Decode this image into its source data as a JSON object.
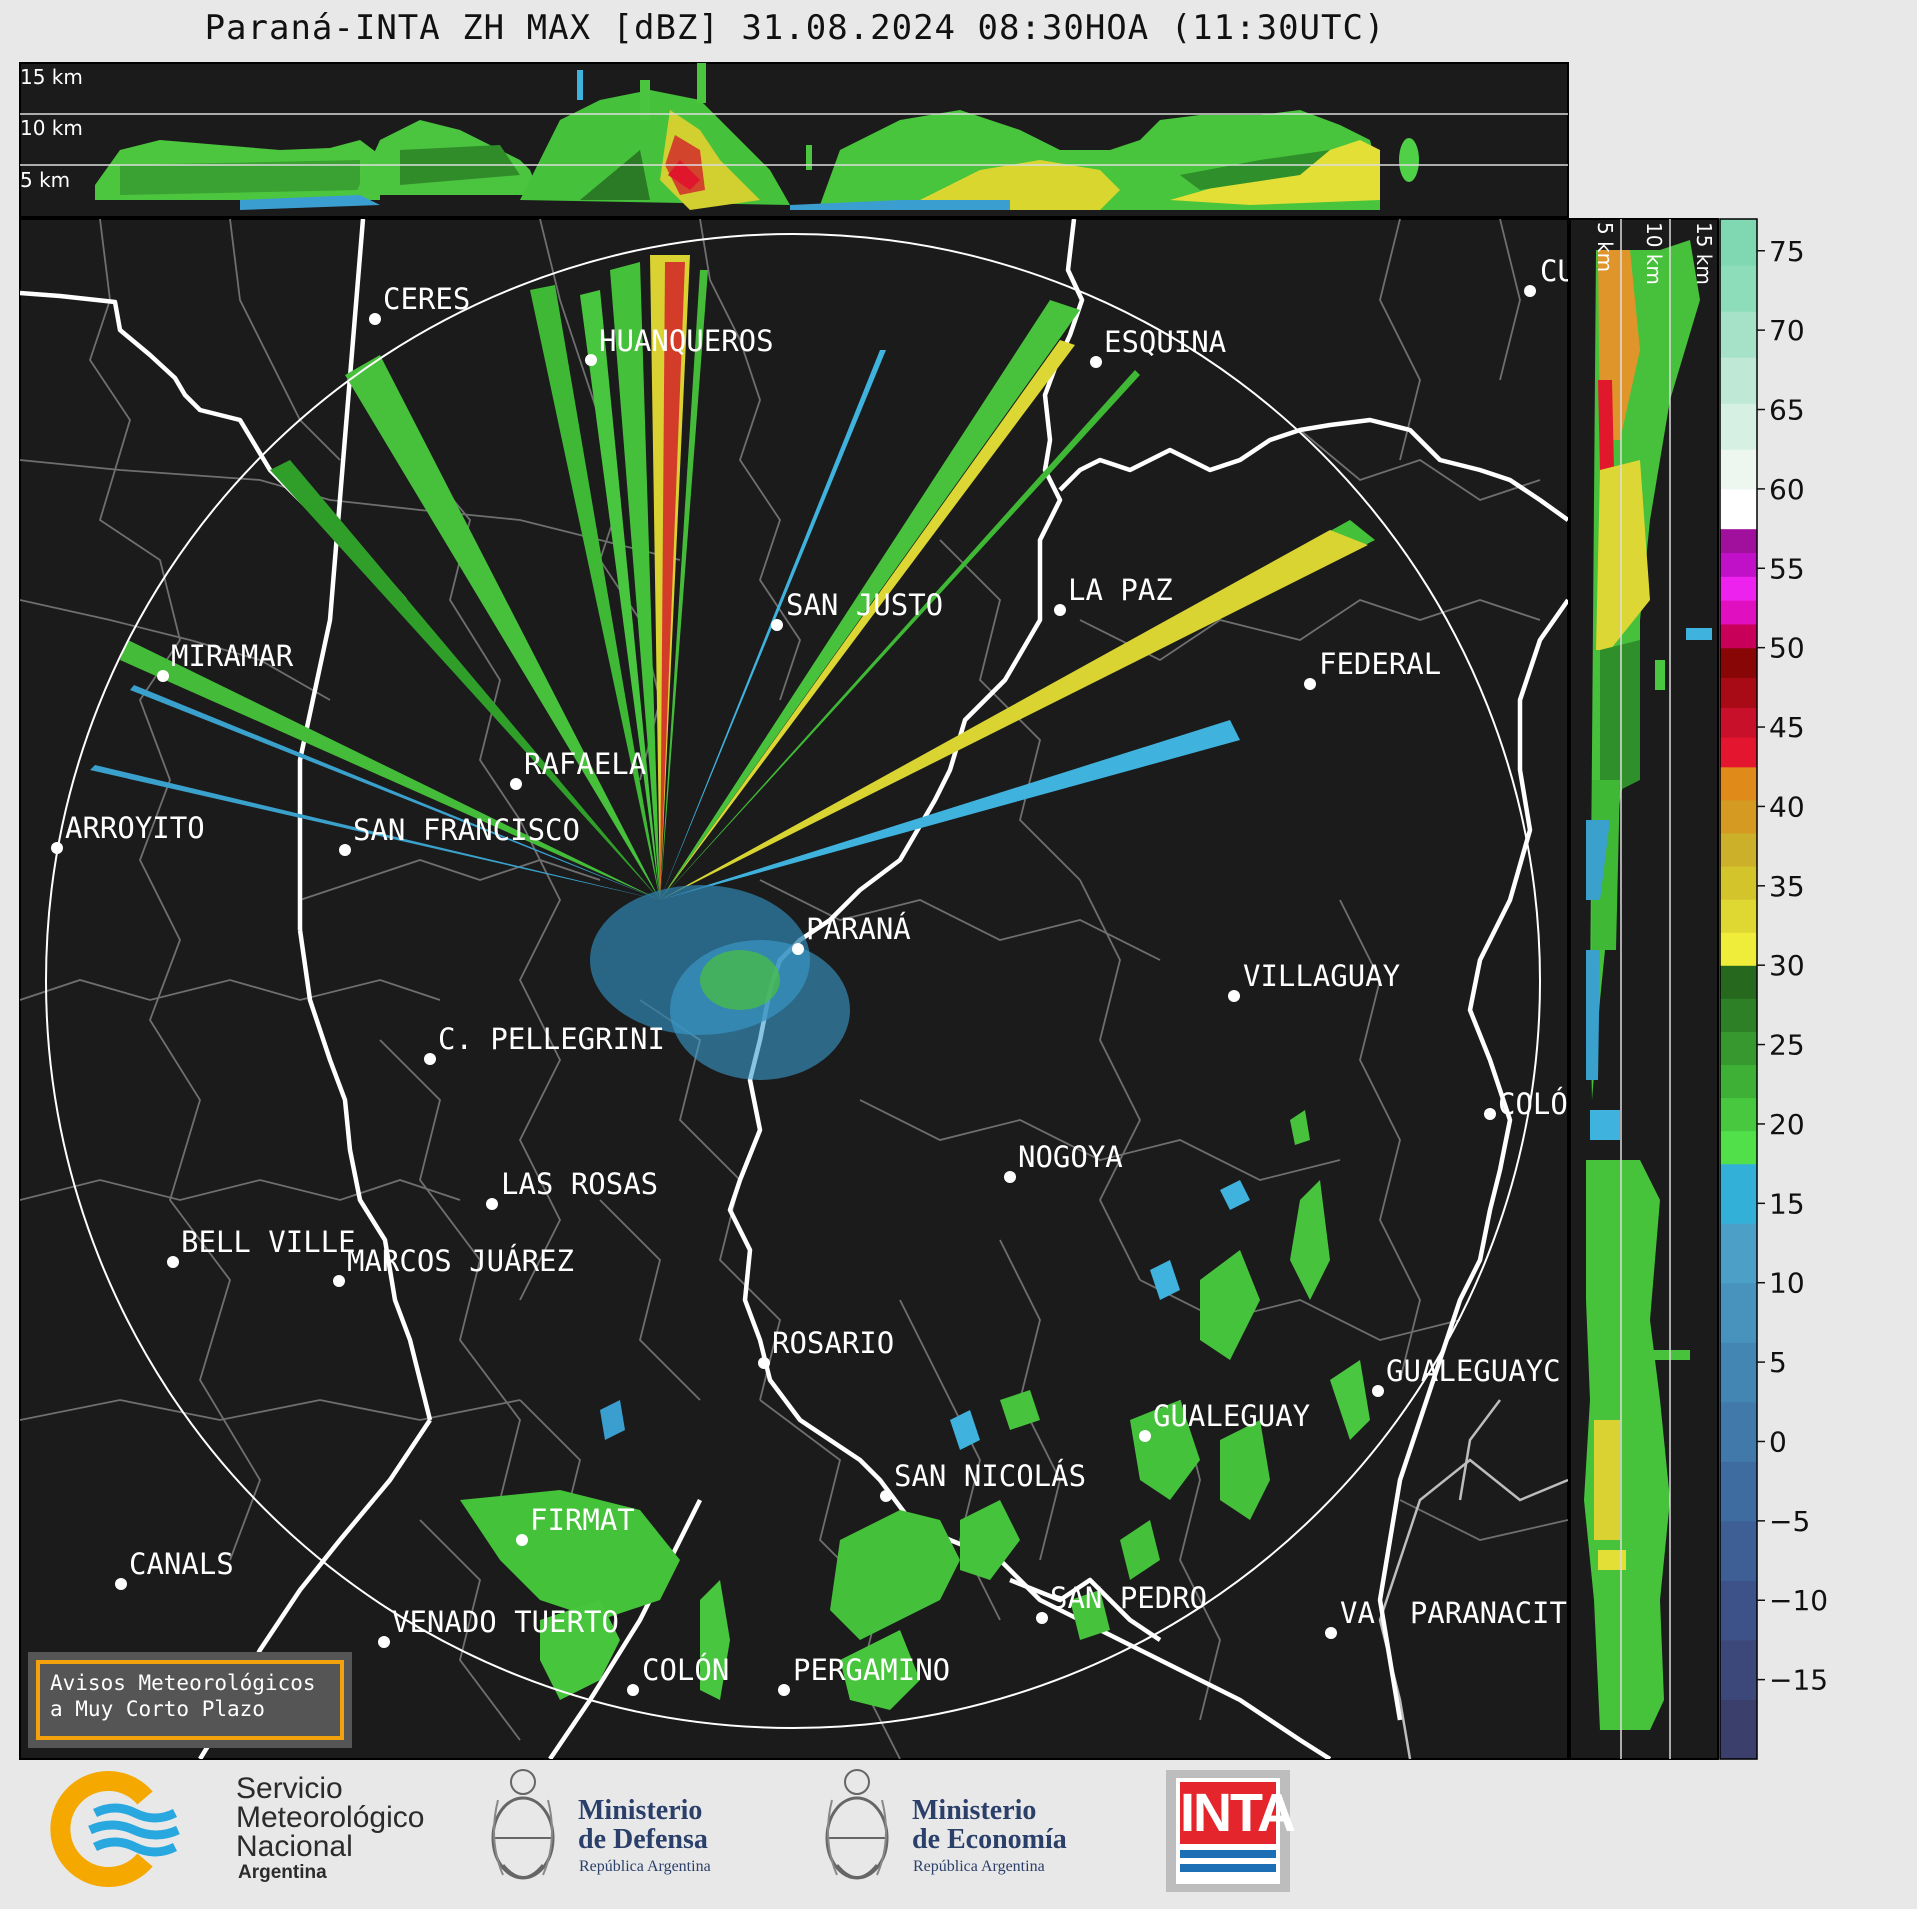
{
  "title": "Paraná-INTA ZH MAX [dBZ] 31.08.2024 08:30HOA (11:30UTC)",
  "height_labels": {
    "h15": "15 km",
    "h10": "10 km",
    "h5": "5 km"
  },
  "side_height_labels": [
    "5 km",
    "10 km",
    "15 km"
  ],
  "cities": [
    {
      "name": "CERES"
    },
    {
      "name": "HUANQUEROS"
    },
    {
      "name": "ESQUINA"
    },
    {
      "name": "CU"
    },
    {
      "name": "SAN JUSTO"
    },
    {
      "name": "LA PAZ"
    },
    {
      "name": "MIRAMAR"
    },
    {
      "name": "FEDERAL"
    },
    {
      "name": "RAFAELA"
    },
    {
      "name": "ARROYITO"
    },
    {
      "name": "SAN FRANCISCO"
    },
    {
      "name": "PARANÁ"
    },
    {
      "name": "VILLAGUAY"
    },
    {
      "name": "C. PELLEGRINI"
    },
    {
      "name": "COLÓ"
    },
    {
      "name": "NOGOYA"
    },
    {
      "name": "LAS ROSAS"
    },
    {
      "name": "BELL VILLE"
    },
    {
      "name": "MARCOS JUÁREZ"
    },
    {
      "name": "ROSARIO"
    },
    {
      "name": "GUALEGUAYC"
    },
    {
      "name": "GUALEGUAY"
    },
    {
      "name": "SAN NICOLÁS"
    },
    {
      "name": "FIRMAT"
    },
    {
      "name": "CANALS"
    },
    {
      "name": "SAN PEDRO"
    },
    {
      "name": "VENADO TUERTO"
    },
    {
      "name": "VA. PARANACIT"
    },
    {
      "name": "COLÓN"
    },
    {
      "name": "PERGAMINO"
    }
  ],
  "colorbar": {
    "unit": "dBZ",
    "ticks": [
      "75",
      "70",
      "65",
      "60",
      "55",
      "50",
      "45",
      "40",
      "35",
      "30",
      "25",
      "20",
      "15",
      "10",
      "5",
      "0",
      "−5",
      "−10",
      "−15"
    ],
    "bands": [
      {
        "from": -20,
        "to": 17.5,
        "colors": [
          "#3a3f6c",
          "#3c477a",
          "#3d5288",
          "#3e5f96",
          "#3f6ca0",
          "#4079aa",
          "#4386b4",
          "#4793be",
          "#4ca0c8",
          "#33b0d8"
        ]
      },
      {
        "from": 17.5,
        "to": 30,
        "colors": [
          "#52e04a",
          "#48c83e",
          "#3fb036",
          "#36982e",
          "#2e8026",
          "#25681e"
        ]
      },
      {
        "from": 30,
        "to": 42.5,
        "colors": [
          "#f0ec3a",
          "#e0d832",
          "#d4c42c",
          "#ccb02a",
          "#d49a22",
          "#e08a1a"
        ]
      },
      {
        "from": 42.5,
        "to": 50,
        "colors": [
          "#e4152e",
          "#c8102a",
          "#a80a16",
          "#880606"
        ]
      },
      {
        "from": 50,
        "to": 57.5,
        "colors": [
          "#c8005a",
          "#e010c0",
          "#ee22ee",
          "#c010c8",
          "#a0109c"
        ]
      },
      {
        "from": 57.5,
        "to": 62.5,
        "colors": [
          "#ffffff",
          "#eef6f0"
        ]
      },
      {
        "from": 62.5,
        "to": 77,
        "colors": [
          "#d6f0e4",
          "#bfe9d6",
          "#a6e2c8",
          "#8ddcba",
          "#80d8b2"
        ]
      }
    ]
  },
  "notice": {
    "line1": "Avisos Meteorológicos",
    "line2": "a Muy Corto Plazo"
  },
  "logos": {
    "smn": {
      "line1": "Servicio",
      "line2": "Meteorológico",
      "line3": "Nacional",
      "country": "Argentina",
      "colors": {
        "ring": "#f5a800",
        "waves": "#29a8e0"
      }
    },
    "defensa": {
      "line1": "Ministerio",
      "line2": "de Defensa",
      "sub": "República Argentina"
    },
    "economia": {
      "line1": "Ministerio",
      "line2": "de Economía",
      "sub": "República Argentina"
    },
    "inta": {
      "text": "INTA",
      "colors": {
        "red": "#e4262c",
        "blue": "#1c6fb5"
      }
    }
  }
}
